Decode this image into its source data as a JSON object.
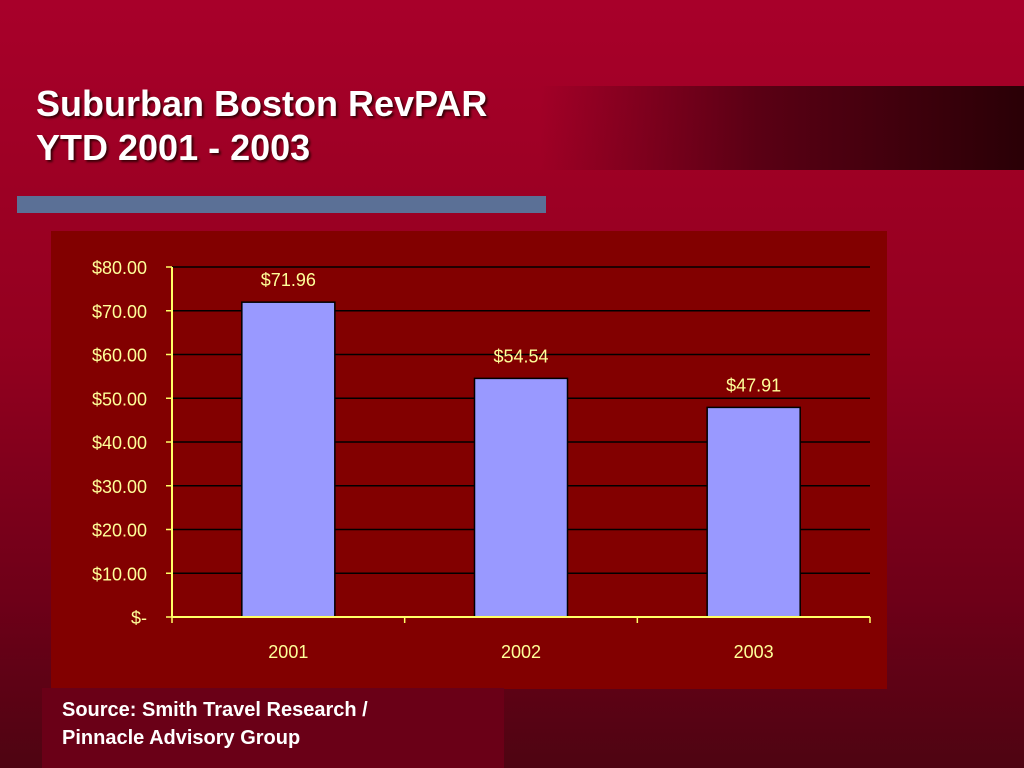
{
  "slide": {
    "title_line1": "Suburban Boston RevPAR",
    "title_line2": "YTD 2001 - 2003",
    "source_line1": "Source: Smith Travel Research /",
    "source_line2": "Pinnacle Advisory Group"
  },
  "colors": {
    "bar_fill": "#9999ff",
    "label_text": "#ffff99",
    "axis": "#ffff66",
    "gridline": "#000000"
  },
  "chart_data": {
    "type": "bar",
    "categories": [
      "2001",
      "2002",
      "2003"
    ],
    "values": [
      71.96,
      54.54,
      47.91
    ],
    "data_labels": [
      "$71.96",
      "$54.54",
      "$47.91"
    ],
    "yticks": [
      0,
      10,
      20,
      30,
      40,
      50,
      60,
      70,
      80
    ],
    "ytick_labels": [
      "$-",
      "$10.00",
      "$20.00",
      "$30.00",
      "$40.00",
      "$50.00",
      "$60.00",
      "$70.00",
      "$80.00"
    ],
    "ylim": [
      0,
      80
    ],
    "grid": true,
    "legend": "none"
  }
}
